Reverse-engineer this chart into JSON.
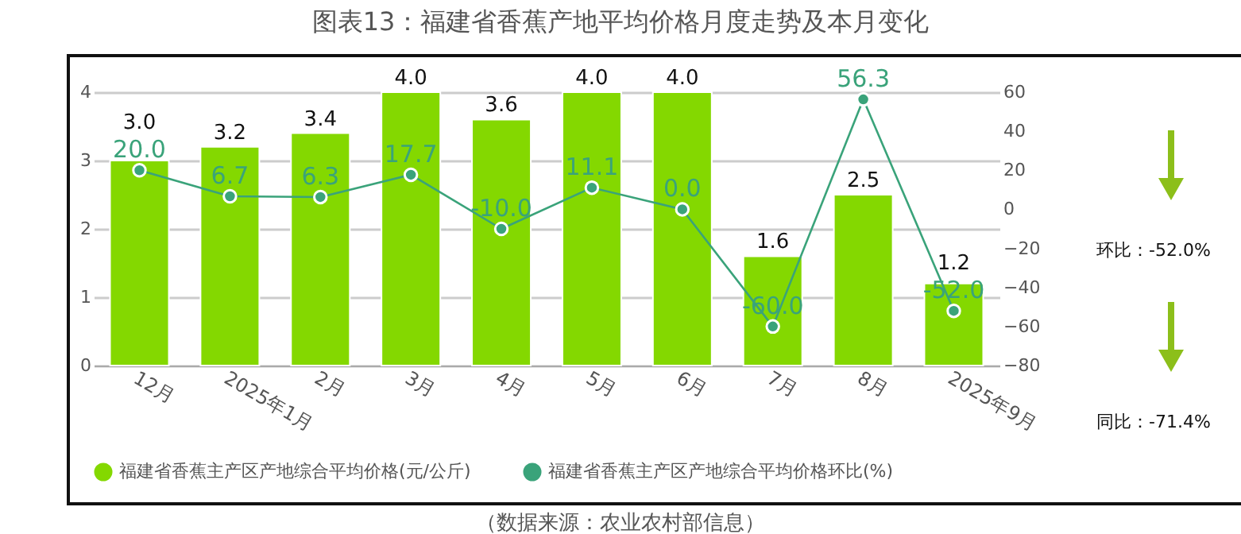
{
  "chart_data": {
    "type": "bar",
    "title": "图表13：福建省香蕉产地平均价格月度走势及本月变化",
    "categories": [
      "12月",
      "2025年1月",
      "2月",
      "3月",
      "4月",
      "5月",
      "6月",
      "7月",
      "8月",
      "2025年9月"
    ],
    "series": [
      {
        "name": "福建省香蕉主产区产地综合平均价格(元/公斤)",
        "color": "#84d800",
        "values": [
          3.0,
          3.2,
          3.4,
          4.0,
          3.6,
          4.0,
          4.0,
          1.6,
          2.5,
          1.2
        ],
        "value_labels": [
          "3.0",
          "3.2",
          "3.4",
          "4.0",
          "3.6",
          "4.0",
          "4.0",
          "1.6",
          "2.5",
          "1.2"
        ]
      },
      {
        "name": "福建省香蕉主产区产地综合平均价格环比(%)",
        "color": "#3aa37a",
        "type": "line",
        "axis": "y2",
        "values": [
          20.0,
          6.7,
          6.3,
          17.7,
          -10.0,
          11.1,
          0.0,
          -60.0,
          56.3,
          -52.0
        ],
        "value_labels": [
          "20.0",
          "6.7",
          "6.3",
          "17.7",
          "-10.0",
          "11.1",
          "0.0",
          "-60.0",
          "56.3",
          "-52.0"
        ]
      }
    ],
    "ylim": [
      0,
      4
    ],
    "yticks": [
      0,
      1,
      2,
      3,
      4
    ],
    "y2lim": [
      -80,
      60
    ],
    "y2ticks": [
      -80,
      -60,
      -40,
      -20,
      0,
      20,
      40,
      60
    ],
    "grid": "y",
    "legend": "bottom",
    "marker": "circle",
    "annotations": [
      "环比：-52.0%",
      "同比：-71.4%",
      "（数据来源：农业农村部信息）"
    ]
  }
}
